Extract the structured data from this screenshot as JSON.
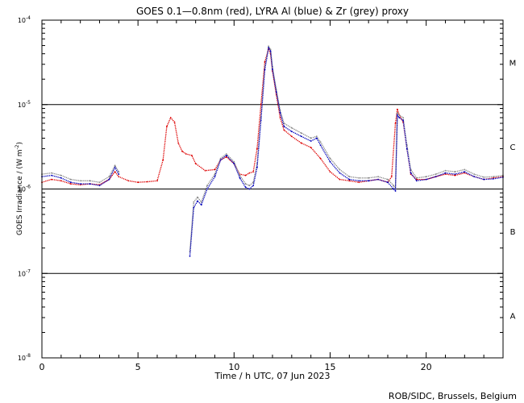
{
  "chart_data": {
    "type": "scatter",
    "title": "GOES 0.1—0.8nm (red), LYRA Al (blue) & Zr (grey) proxy",
    "xlabel": "Time / h UTC, 07 Jun 2023",
    "ylabel_prefix": "GOES Irradiance / (W m",
    "ylabel_sup": "-2",
    "ylabel_suffix": ")",
    "credit": "ROB/SIDC, Brussels, Belgium",
    "xlim": [
      0,
      24
    ],
    "ylim": [
      1e-08,
      0.0001
    ],
    "yscale": "log",
    "x_ticks": [
      {
        "value": 0,
        "label": "0"
      },
      {
        "value": 5,
        "label": "5"
      },
      {
        "value": 10,
        "label": "10"
      },
      {
        "value": 15,
        "label": "15"
      },
      {
        "value": 20,
        "label": "20"
      }
    ],
    "y_ticks": [
      {
        "exp": -8,
        "base": "10",
        "sup": "-8"
      },
      {
        "exp": -7,
        "base": "10",
        "sup": "-7"
      },
      {
        "exp": -6,
        "base": "10",
        "sup": "-6"
      },
      {
        "exp": -5,
        "base": "10",
        "sup": "-5"
      },
      {
        "exp": -4,
        "base": "10",
        "sup": "-4"
      }
    ],
    "class_lines": [
      1e-07,
      1e-06,
      1e-05
    ],
    "flare_classes": [
      {
        "label": "A",
        "exp": -7.5
      },
      {
        "label": "B",
        "exp": -6.5
      },
      {
        "label": "C",
        "exp": -5.5
      },
      {
        "label": "M",
        "exp": -4.5
      }
    ],
    "series": [
      {
        "name": "GOES 0.1-0.8nm",
        "color": "#dd0000",
        "x": [
          0,
          0.5,
          1,
          1.5,
          2,
          2.5,
          3,
          3.5,
          3.8,
          4,
          4.5,
          5,
          5.5,
          6,
          6.3,
          6.5,
          6.7,
          6.9,
          7.1,
          7.3,
          7.5,
          7.8,
          8,
          8.5,
          9,
          9.3,
          9.6,
          10,
          10.3,
          10.6,
          10.8,
          11,
          11.2,
          11.4,
          11.6,
          11.8,
          11.9,
          12,
          12.2,
          12.4,
          12.6,
          13,
          13.5,
          14,
          14.5,
          15,
          15.5,
          16,
          16.5,
          17,
          17.5,
          18,
          18.2,
          18.4,
          18.5,
          18.6,
          18.8,
          19,
          19.2,
          19.5,
          20,
          20.5,
          21,
          21.5,
          22,
          22.5,
          23,
          23.5,
          24
        ],
        "y": [
          1.2e-06,
          1.3e-06,
          1.25e-06,
          1.15e-06,
          1.12e-06,
          1.15e-06,
          1.12e-06,
          1.3e-06,
          1.6e-06,
          1.4e-06,
          1.25e-06,
          1.2e-06,
          1.22e-06,
          1.25e-06,
          2.2e-06,
          5.5e-06,
          7e-06,
          6.2e-06,
          3.5e-06,
          2.8e-06,
          2.6e-06,
          2.5e-06,
          2e-06,
          1.65e-06,
          1.7e-06,
          2.2e-06,
          2.4e-06,
          2e-06,
          1.5e-06,
          1.45e-06,
          1.55e-06,
          1.6e-06,
          3e-06,
          1e-05,
          3.2e-05,
          4.6e-05,
          4e-05,
          2.5e-05,
          1.3e-05,
          7e-06,
          5e-06,
          4.2e-06,
          3.5e-06,
          3.1e-06,
          2.3e-06,
          1.6e-06,
          1.3e-06,
          1.25e-06,
          1.2e-06,
          1.25e-06,
          1.3e-06,
          1.2e-06,
          1.4e-06,
          6e-06,
          8.8e-06,
          7.5e-06,
          6.2e-06,
          3e-06,
          1.5e-06,
          1.3e-06,
          1.3e-06,
          1.4e-06,
          1.5e-06,
          1.45e-06,
          1.55e-06,
          1.4e-06,
          1.3e-06,
          1.35e-06,
          1.4e-06
        ]
      },
      {
        "name": "LYRA Zr proxy",
        "color": "#888888",
        "x": [
          0,
          0.5,
          1,
          1.5,
          2,
          2.5,
          3,
          3.5,
          3.8,
          4,
          7.7,
          7.9,
          8.1,
          8.3,
          8.6,
          9,
          9.3,
          9.6,
          10,
          10.3,
          10.6,
          10.8,
          11,
          11.2,
          11.4,
          11.6,
          11.8,
          11.9,
          12,
          12.2,
          12.4,
          12.6,
          13,
          13.5,
          14,
          14.3,
          14.5,
          15,
          15.5,
          16,
          16.5,
          17,
          17.5,
          18,
          18.3,
          18.4,
          18.5,
          18.6,
          18.8,
          19,
          19.2,
          19.5,
          20,
          20.5,
          21,
          21.5,
          22,
          22.5,
          23,
          23.5,
          24
        ],
        "y": [
          1.5e-06,
          1.55e-06,
          1.45e-06,
          1.3e-06,
          1.25e-06,
          1.25e-06,
          1.2e-06,
          1.4e-06,
          1.9e-06,
          1.6e-06,
          1.8e-07,
          7e-07,
          8e-07,
          7e-07,
          1.1e-06,
          1.5e-06,
          2.3e-06,
          2.6e-06,
          2.1e-06,
          1.45e-06,
          1.15e-06,
          1.1e-06,
          1.2e-06,
          2e-06,
          7e-06,
          2.8e-05,
          4.9e-05,
          4.5e-05,
          2.8e-05,
          1.5e-05,
          8.5e-06,
          6e-06,
          5.3e-06,
          4.6e-06,
          4e-06,
          4.2e-06,
          3.6e-06,
          2.3e-06,
          1.7e-06,
          1.4e-06,
          1.35e-06,
          1.35e-06,
          1.4e-06,
          1.3e-06,
          1.1e-06,
          1e-06,
          8e-06,
          7.5e-06,
          7e-06,
          3.3e-06,
          1.7e-06,
          1.35e-06,
          1.4e-06,
          1.5e-06,
          1.65e-06,
          1.6e-06,
          1.7e-06,
          1.5e-06,
          1.38e-06,
          1.4e-06,
          1.45e-06
        ]
      },
      {
        "name": "LYRA Al proxy",
        "color": "#0000bb",
        "x": [
          0,
          0.5,
          1,
          1.5,
          2,
          2.5,
          3,
          3.5,
          3.8,
          4,
          7.7,
          7.9,
          8.1,
          8.3,
          8.6,
          9,
          9.3,
          9.6,
          10,
          10.3,
          10.6,
          10.8,
          11,
          11.2,
          11.4,
          11.6,
          11.8,
          11.9,
          12,
          12.2,
          12.4,
          12.6,
          13,
          13.5,
          14,
          14.3,
          14.5,
          15,
          15.5,
          16,
          16.5,
          17,
          17.5,
          18,
          18.3,
          18.4,
          18.5,
          18.6,
          18.8,
          19,
          19.2,
          19.5,
          20,
          20.5,
          21,
          21.5,
          22,
          22.5,
          23,
          23.5,
          24
        ],
        "y": [
          1.4e-06,
          1.45e-06,
          1.35e-06,
          1.2e-06,
          1.15e-06,
          1.15e-06,
          1.1e-06,
          1.3e-06,
          1.8e-06,
          1.5e-06,
          1.6e-07,
          6e-07,
          7.2e-07,
          6.5e-07,
          1e-06,
          1.4e-06,
          2.2e-06,
          2.5e-06,
          2e-06,
          1.35e-06,
          1.05e-06,
          1e-06,
          1.1e-06,
          1.8e-06,
          6.5e-06,
          2.6e-05,
          4.7e-05,
          4.3e-05,
          2.6e-05,
          1.4e-05,
          8e-06,
          5.5e-06,
          4.8e-06,
          4.2e-06,
          3.7e-06,
          4e-06,
          3.3e-06,
          2.1e-06,
          1.55e-06,
          1.3e-06,
          1.25e-06,
          1.25e-06,
          1.3e-06,
          1.2e-06,
          1e-06,
          9.5e-07,
          7.5e-06,
          7e-06,
          6.5e-06,
          3e-06,
          1.55e-06,
          1.25e-06,
          1.3e-06,
          1.4e-06,
          1.55e-06,
          1.5e-06,
          1.6e-06,
          1.4e-06,
          1.3e-06,
          1.32e-06,
          1.38e-06
        ]
      }
    ]
  }
}
